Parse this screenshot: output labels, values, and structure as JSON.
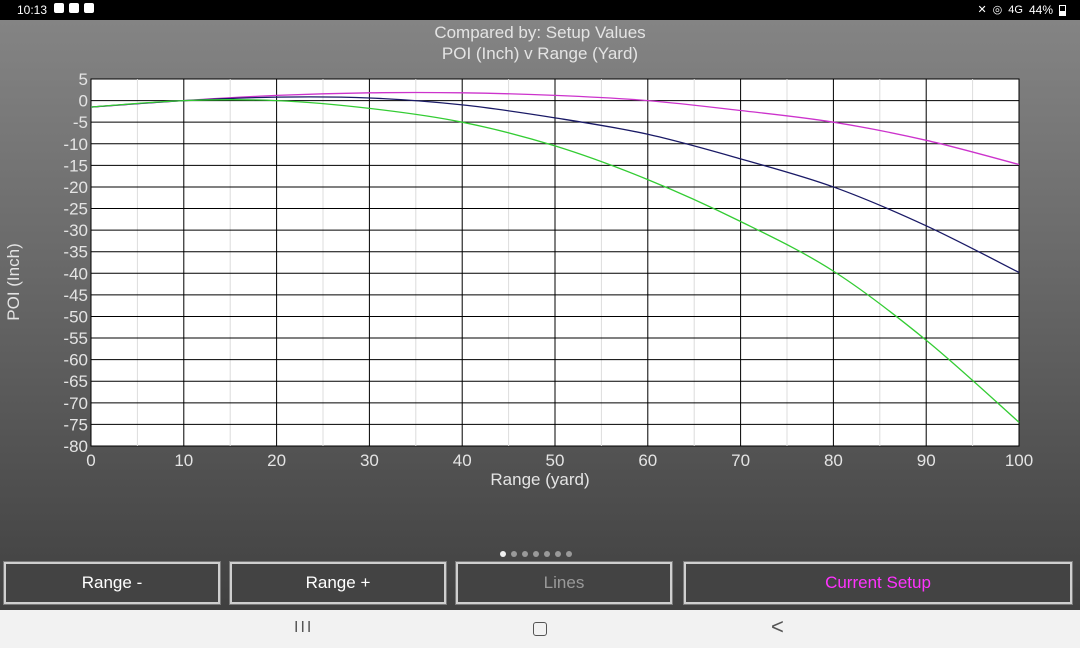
{
  "status_bar": {
    "time": "10:13",
    "left_icons": [
      "mail-icon",
      "bag-icon",
      "check-icon"
    ],
    "right_icons": [
      "mute-icon",
      "hotspot-icon",
      "signal-4g-icon"
    ],
    "network": "4G",
    "battery": "44%"
  },
  "chart_data": {
    "type": "line",
    "title": "Compared by: Setup Values",
    "subtitle": "POI (Inch) v Range (Yard)",
    "xlabel": "Range (yard)",
    "ylabel": "POI (Inch)",
    "xlim": [
      0,
      100
    ],
    "ylim": [
      -80,
      5
    ],
    "x_ticks": [
      0,
      10,
      20,
      30,
      40,
      50,
      60,
      70,
      80,
      90,
      100
    ],
    "y_ticks": [
      5,
      0,
      -5,
      -10,
      -15,
      -20,
      -25,
      -30,
      -35,
      -40,
      -45,
      -50,
      -55,
      -60,
      -65,
      -70,
      -75,
      -80
    ],
    "grid": true,
    "series": [
      {
        "color": "#cc33cc",
        "x": [
          0,
          10,
          20,
          30,
          40,
          50,
          60,
          70,
          80,
          90,
          100
        ],
        "y": [
          -1.5,
          0,
          1.2,
          1.8,
          1.8,
          1.2,
          0,
          -2.3,
          -5.0,
          -9.2,
          -14.8
        ]
      },
      {
        "color": "#1a1a66",
        "x": [
          0,
          10,
          20,
          30,
          40,
          50,
          60,
          70,
          80,
          90,
          100
        ],
        "y": [
          -1.5,
          0,
          0.8,
          0.6,
          -1.0,
          -4.0,
          -7.8,
          -13.5,
          -20.0,
          -29.0,
          -39.8
        ]
      },
      {
        "color": "#33cc33",
        "x": [
          0,
          10,
          20,
          30,
          40,
          50,
          60,
          70,
          80,
          90,
          100
        ],
        "y": [
          -1.5,
          0,
          0,
          -1.8,
          -5.0,
          -10.5,
          -18.3,
          -28.0,
          -39.5,
          -55.5,
          -74.5
        ]
      }
    ]
  },
  "pager": {
    "count": 7,
    "active": 0
  },
  "buttons": {
    "range_minus": "Range -",
    "range_plus": "Range +",
    "lines": "Lines",
    "current_setup": "Current Setup"
  },
  "nav": {
    "recent": "III",
    "back": "<"
  }
}
